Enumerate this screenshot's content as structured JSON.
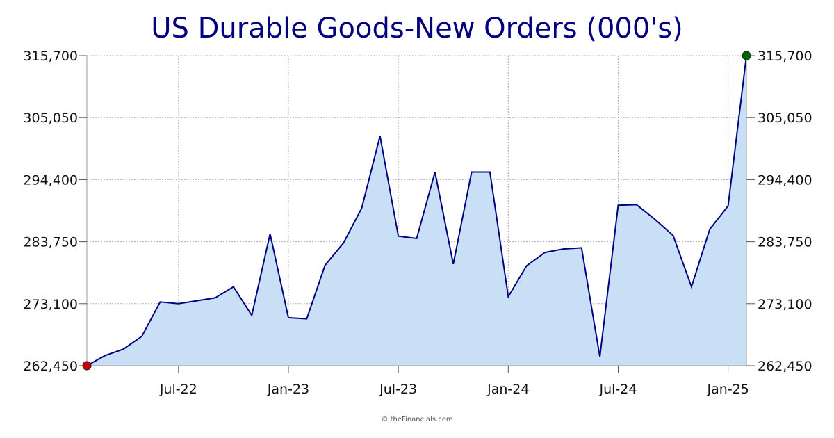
{
  "colors": {
    "title": "#000080",
    "line": "#000080",
    "area": "#c9dff6",
    "grid": "#b0b0b0",
    "start_marker": "#cc0000",
    "end_marker": "#006600"
  },
  "credit": "© theFinancials.com",
  "chart_data": {
    "type": "area",
    "title": "US Durable Goods-New Orders (000's)",
    "xlabel": "",
    "ylabel": "",
    "ylim": [
      262450,
      315700
    ],
    "yticks": [
      "262,450",
      "273,100",
      "283,750",
      "294,400",
      "305,050",
      "315,700"
    ],
    "ytick_values": [
      262450,
      273100,
      283750,
      294400,
      305050,
      315700
    ],
    "xticks": [
      "Jul-22",
      "Jan-23",
      "Jul-23",
      "Jan-24",
      "Jul-24",
      "Jan-25"
    ],
    "xtick_months": [
      5,
      11,
      17,
      23,
      29,
      35
    ],
    "grid": true,
    "y_axis_both_sides": true,
    "x_start": "Feb-22",
    "x_end": "Mar-25",
    "series": [
      {
        "values": [
          262450,
          264200,
          265300,
          267500,
          273400,
          273100,
          273600,
          274100,
          276000,
          271100,
          285100,
          270700,
          270500,
          279700,
          283500,
          289500,
          301900,
          284700,
          284300,
          295700,
          279900,
          295700,
          295700,
          274300,
          279600,
          281900,
          282500,
          282700,
          264000,
          290000,
          290100,
          287600,
          284800,
          276000,
          285900,
          289900,
          315700
        ]
      }
    ]
  }
}
